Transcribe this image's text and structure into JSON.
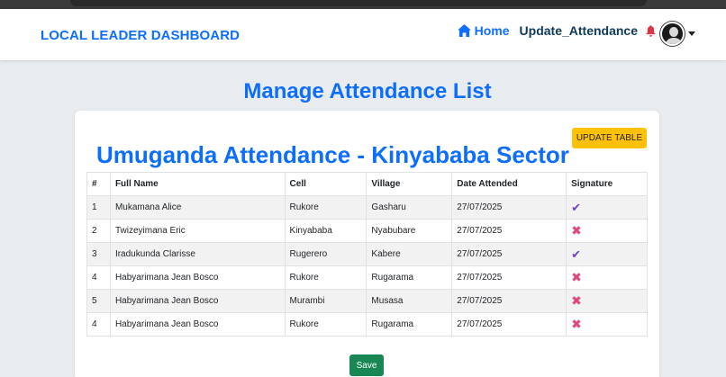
{
  "navbar": {
    "brand": "LOCAL LEADER DASHBOARD",
    "home_label": "Home",
    "update_label": "Update_Attendance",
    "icons": {
      "home": "home-icon",
      "bell": "bell-icon",
      "avatar": "avatar",
      "caret": "chevron-down-icon"
    },
    "colors": {
      "brand": "#0d6efd",
      "bell": "#dc3545"
    }
  },
  "page": {
    "title": "Manage Attendance List"
  },
  "card": {
    "title": "Umuganda Attendance - Kinyababa Sector",
    "update_button": "UPDATE TABLE",
    "save_button": "Save"
  },
  "table": {
    "headers": [
      "#",
      "Full Name",
      "Cell",
      "Village",
      "Date Attended",
      "Signature"
    ],
    "rows": [
      {
        "num": "1",
        "name": "Mukamana Alice",
        "cell": "Rukore",
        "village": "Gasharu",
        "date": "27/07/2025",
        "signature": "✔"
      },
      {
        "num": "2",
        "name": "Twizeyimana Eric",
        "cell": "Kinyababa",
        "village": "Nyabubare",
        "date": "27/07/2025",
        "signature": "✖"
      },
      {
        "num": "3",
        "name": "Iradukunda Clarisse",
        "cell": "Rugerero",
        "village": "Kabere",
        "date": "27/07/2025",
        "signature": "✔"
      },
      {
        "num": "4",
        "name": "Habyarimana Jean Bosco",
        "cell": "Rukore",
        "village": "Rugarama",
        "date": "27/07/2025",
        "signature": "✖"
      },
      {
        "num": "5",
        "name": "Habyarimana Jean Bosco",
        "cell": "Murambi",
        "village": "Musasa",
        "date": "27/07/2025",
        "signature": "✖"
      },
      {
        "num": "4",
        "name": "Habyarimana Jean Bosco",
        "cell": "Rukore",
        "village": "Rugarama",
        "date": "27/07/2025",
        "signature": "✖"
      }
    ]
  }
}
